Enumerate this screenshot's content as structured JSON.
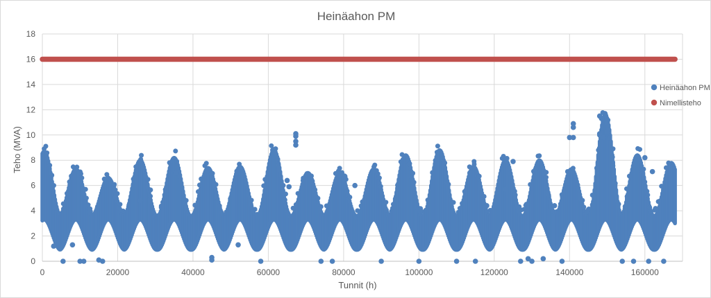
{
  "chart_data": {
    "type": "scatter",
    "title": "Heinäahon PM",
    "xlabel": "Tunnit (h)",
    "ylabel": "Teho (MVA)",
    "xlim": [
      0,
      170000
    ],
    "ylim": [
      0,
      18
    ],
    "x_ticks": [
      0,
      20000,
      40000,
      60000,
      80000,
      100000,
      120000,
      140000,
      160000
    ],
    "y_ticks": [
      0,
      2,
      4,
      6,
      8,
      10,
      12,
      14,
      16,
      18
    ],
    "grid": true,
    "legend_position": "right",
    "series": [
      {
        "name": "Heinäahon PM",
        "color": "#4f81bd",
        "x_range": [
          0,
          168000
        ],
        "seasonal_period_h": 8760,
        "seasonal_peaks": [
          {
            "x": 500,
            "y": 8.7
          },
          {
            "x": 8900,
            "y": 7.3
          },
          {
            "x": 17500,
            "y": 6.6
          },
          {
            "x": 26000,
            "y": 8.0
          },
          {
            "x": 35000,
            "y": 8.2
          },
          {
            "x": 44000,
            "y": 7.4
          },
          {
            "x": 52500,
            "y": 7.5
          },
          {
            "x": 61500,
            "y": 8.8
          },
          {
            "x": 70500,
            "y": 7.0
          },
          {
            "x": 79000,
            "y": 7.0
          },
          {
            "x": 88000,
            "y": 7.3
          },
          {
            "x": 96500,
            "y": 8.4
          },
          {
            "x": 105500,
            "y": 8.8
          },
          {
            "x": 114500,
            "y": 7.5
          },
          {
            "x": 123000,
            "y": 8.0
          },
          {
            "x": 132000,
            "y": 8.0
          },
          {
            "x": 140500,
            "y": 7.3
          },
          {
            "x": 149500,
            "y": 11.6
          },
          {
            "x": 158000,
            "y": 8.4
          },
          {
            "x": 167000,
            "y": 7.8
          }
        ],
        "trough_level": 2.0,
        "outliers": [
          [
            67300,
            10.1
          ],
          [
            67300,
            9.9
          ],
          [
            67300,
            9.5
          ],
          [
            67300,
            9.2
          ],
          [
            141000,
            10.9
          ],
          [
            141000,
            10.6
          ],
          [
            140000,
            9.8
          ],
          [
            141000,
            9.8
          ],
          [
            148000,
            11.5
          ],
          [
            148500,
            11.3
          ],
          [
            149500,
            11.6
          ],
          [
            148000,
            10.0
          ],
          [
            149000,
            9.8
          ],
          [
            150000,
            10.2
          ],
          [
            35500,
            7.0
          ],
          [
            26000,
            4.8
          ],
          [
            10000,
            0.0
          ],
          [
            11000,
            0.0
          ],
          [
            15000,
            0.1
          ],
          [
            16000,
            0.0
          ],
          [
            5500,
            0.0
          ],
          [
            45000,
            0.1
          ],
          [
            45000,
            0.3
          ],
          [
            58000,
            0.0
          ],
          [
            74000,
            0.0
          ],
          [
            77000,
            0.0
          ],
          [
            90000,
            0.0
          ],
          [
            100000,
            0.0
          ],
          [
            110000,
            0.0
          ],
          [
            115000,
            0.0
          ],
          [
            127000,
            0.0
          ],
          [
            130000,
            0.0
          ],
          [
            138000,
            0.0
          ],
          [
            154000,
            0.0
          ],
          [
            157000,
            0.0
          ],
          [
            161000,
            0.0
          ],
          [
            165000,
            0.0
          ],
          [
            129000,
            0.2
          ],
          [
            133000,
            0.2
          ],
          [
            3000,
            1.2
          ],
          [
            8000,
            1.3
          ],
          [
            52000,
            1.3
          ],
          [
            65000,
            6.4
          ],
          [
            65500,
            5.9
          ],
          [
            83000,
            6.0
          ],
          [
            125000,
            7.9
          ],
          [
            123000,
            5.7
          ],
          [
            131000,
            7.3
          ],
          [
            160000,
            8.2
          ],
          [
            162000,
            7.1
          ],
          [
            118000,
            4.4
          ],
          [
            136000,
            4.4
          ]
        ]
      },
      {
        "name": "Nimellisteho",
        "color": "#c0504d",
        "x": [
          0,
          168000
        ],
        "y": [
          16,
          16
        ]
      }
    ]
  }
}
